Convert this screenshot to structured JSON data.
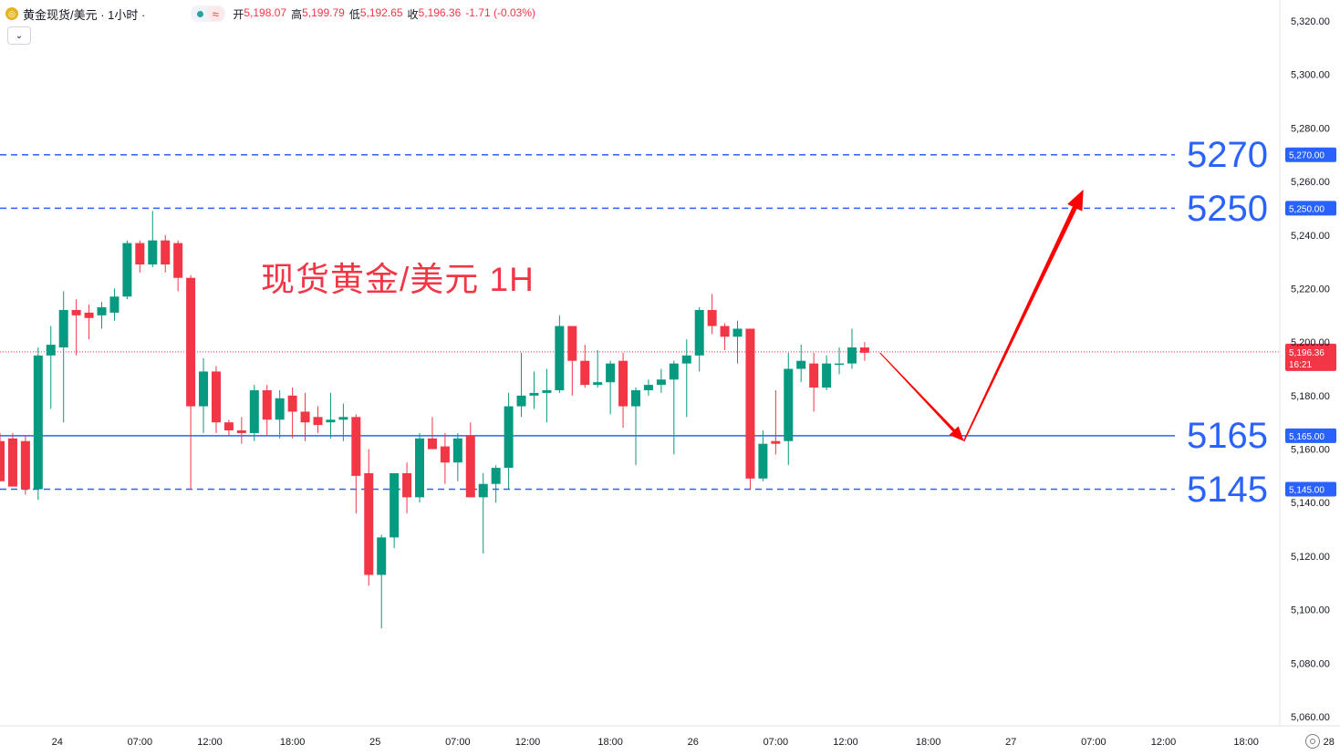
{
  "header": {
    "symbol_title": "黄金现货/美元 · 1小时 ·",
    "ohlc": [
      {
        "label": "开",
        "value": "5,198.07"
      },
      {
        "label": "高",
        "value": "5,199.79"
      },
      {
        "label": "低",
        "value": "5,192.65"
      },
      {
        "label": "收",
        "value": "5,196.36"
      },
      {
        "label": "",
        "value": "-1.71 (-0.03%)"
      }
    ],
    "status_color": "#26a69a",
    "wave_icon": "≈",
    "collapse_icon": "⌄"
  },
  "annotation_title": "现货黄金/美元 1H",
  "levels": [
    {
      "big_label": "5270",
      "axis_label": "5,270.00",
      "value": 5270,
      "style": "dashed"
    },
    {
      "big_label": "5250",
      "axis_label": "5,250.00",
      "value": 5250,
      "style": "dashed"
    },
    {
      "big_label": "5165",
      "axis_label": "5,165.00",
      "value": 5165,
      "style": "solid"
    },
    {
      "big_label": "5145",
      "axis_label": "5,145.00",
      "value": 5145,
      "style": "dashed"
    }
  ],
  "current_price": {
    "label": "5,196.36",
    "countdown": "16:21",
    "value": 5196.36
  },
  "colors": {
    "up": "#089981",
    "down": "#f23645",
    "level": "#2962ff",
    "arrow": "#ff0000",
    "axis_text": "#131722"
  },
  "chart_data": {
    "type": "candlestick",
    "title": "现货黄金/美元 1H",
    "ylim": [
      5052,
      5325
    ],
    "y_ticks": [
      {
        "value": 5320,
        "label": "5,320.00"
      },
      {
        "value": 5300,
        "label": "5,300.00"
      },
      {
        "value": 5280,
        "label": "5,280.00"
      },
      {
        "value": 5260,
        "label": "5,260.00"
      },
      {
        "value": 5240,
        "label": "5,240.00"
      },
      {
        "value": 5220,
        "label": "5,220.00"
      },
      {
        "value": 5200,
        "label": "5,200.00"
      },
      {
        "value": 5180,
        "label": "5,180.00"
      },
      {
        "value": 5160,
        "label": "5,160.00"
      },
      {
        "value": 5140,
        "label": "5,140.00"
      },
      {
        "value": 5120,
        "label": "5,120.00"
      },
      {
        "value": 5100,
        "label": "5,100.00"
      },
      {
        "value": 5080,
        "label": "5,080.00"
      },
      {
        "value": 5060,
        "label": "5,060.00"
      }
    ],
    "x_ticks": [
      {
        "index": 4.5,
        "label": "24"
      },
      {
        "index": 11,
        "label": "07:00"
      },
      {
        "index": 16.5,
        "label": "12:00"
      },
      {
        "index": 23,
        "label": "18:00"
      },
      {
        "index": 29.5,
        "label": "25"
      },
      {
        "index": 36,
        "label": "07:00"
      },
      {
        "index": 41.5,
        "label": "12:00"
      },
      {
        "index": 48,
        "label": "18:00"
      },
      {
        "index": 54.5,
        "label": "26"
      },
      {
        "index": 61,
        "label": "07:00"
      },
      {
        "index": 66.5,
        "label": "12:00"
      },
      {
        "index": 73,
        "label": "18:00"
      },
      {
        "index": 79.5,
        "label": "27"
      },
      {
        "index": 86,
        "label": "07:00"
      },
      {
        "index": 91.5,
        "label": "12:00"
      },
      {
        "index": 98,
        "label": "18:00"
      },
      {
        "index": 104.5,
        "label": "28"
      }
    ],
    "candles": [
      {
        "o": 5163,
        "h": 5166,
        "l": 5148,
        "c": 5148
      },
      {
        "o": 5164,
        "h": 5166,
        "l": 5146,
        "c": 5146
      },
      {
        "o": 5163,
        "h": 5165,
        "l": 5143,
        "c": 5145
      },
      {
        "o": 5145,
        "h": 5198,
        "l": 5141,
        "c": 5195
      },
      {
        "o": 5195,
        "h": 5206,
        "l": 5175,
        "c": 5199
      },
      {
        "o": 5198,
        "h": 5219,
        "l": 5170,
        "c": 5212
      },
      {
        "o": 5212,
        "h": 5216,
        "l": 5195,
        "c": 5210
      },
      {
        "o": 5211,
        "h": 5214,
        "l": 5201,
        "c": 5209
      },
      {
        "o": 5210,
        "h": 5215,
        "l": 5205,
        "c": 5213
      },
      {
        "o": 5211,
        "h": 5220,
        "l": 5208,
        "c": 5217
      },
      {
        "o": 5217,
        "h": 5238,
        "l": 5216,
        "c": 5237
      },
      {
        "o": 5237,
        "h": 5238,
        "l": 5226,
        "c": 5229
      },
      {
        "o": 5229,
        "h": 5249,
        "l": 5228,
        "c": 5238
      },
      {
        "o": 5238,
        "h": 5240,
        "l": 5226,
        "c": 5229
      },
      {
        "o": 5237,
        "h": 5238,
        "l": 5219,
        "c": 5224
      },
      {
        "o": 5224,
        "h": 5225,
        "l": 5145,
        "c": 5176
      },
      {
        "o": 5176,
        "h": 5194,
        "l": 5166,
        "c": 5189
      },
      {
        "o": 5189,
        "h": 5191,
        "l": 5166,
        "c": 5170
      },
      {
        "o": 5170,
        "h": 5171,
        "l": 5165,
        "c": 5167
      },
      {
        "o": 5167,
        "h": 5172,
        "l": 5162,
        "c": 5166
      },
      {
        "o": 5166,
        "h": 5184,
        "l": 5163,
        "c": 5182
      },
      {
        "o": 5182,
        "h": 5184,
        "l": 5165,
        "c": 5171
      },
      {
        "o": 5171,
        "h": 5182,
        "l": 5164,
        "c": 5179
      },
      {
        "o": 5180,
        "h": 5183,
        "l": 5164,
        "c": 5174
      },
      {
        "o": 5174,
        "h": 5181,
        "l": 5163,
        "c": 5170
      },
      {
        "o": 5172,
        "h": 5176,
        "l": 5166,
        "c": 5169
      },
      {
        "o": 5170,
        "h": 5181,
        "l": 5164,
        "c": 5171
      },
      {
        "o": 5171,
        "h": 5177,
        "l": 5163,
        "c": 5172
      },
      {
        "o": 5172,
        "h": 5173,
        "l": 5136,
        "c": 5150
      },
      {
        "o": 5151,
        "h": 5160,
        "l": 5109,
        "c": 5113
      },
      {
        "o": 5113,
        "h": 5128,
        "l": 5093,
        "c": 5127
      },
      {
        "o": 5127,
        "h": 5151,
        "l": 5123,
        "c": 5151
      },
      {
        "o": 5151,
        "h": 5155,
        "l": 5136,
        "c": 5142
      },
      {
        "o": 5142,
        "h": 5166,
        "l": 5140,
        "c": 5164
      },
      {
        "o": 5164,
        "h": 5172,
        "l": 5162,
        "c": 5160
      },
      {
        "o": 5161,
        "h": 5166,
        "l": 5147,
        "c": 5155
      },
      {
        "o": 5155,
        "h": 5166,
        "l": 5148,
        "c": 5164
      },
      {
        "o": 5165,
        "h": 5170,
        "l": 5142,
        "c": 5142
      },
      {
        "o": 5142,
        "h": 5151,
        "l": 5121,
        "c": 5147
      },
      {
        "o": 5147,
        "h": 5154,
        "l": 5140,
        "c": 5153
      },
      {
        "o": 5153,
        "h": 5181,
        "l": 5145,
        "c": 5176
      },
      {
        "o": 5176,
        "h": 5196,
        "l": 5172,
        "c": 5180
      },
      {
        "o": 5180,
        "h": 5189,
        "l": 5175,
        "c": 5181
      },
      {
        "o": 5181,
        "h": 5190,
        "l": 5170,
        "c": 5182
      },
      {
        "o": 5182,
        "h": 5210,
        "l": 5181,
        "c": 5206
      },
      {
        "o": 5206,
        "h": 5206,
        "l": 5180,
        "c": 5193
      },
      {
        "o": 5193,
        "h": 5199,
        "l": 5183,
        "c": 5184
      },
      {
        "o": 5184,
        "h": 5197,
        "l": 5183,
        "c": 5185
      },
      {
        "o": 5185,
        "h": 5193,
        "l": 5173,
        "c": 5192
      },
      {
        "o": 5193,
        "h": 5196,
        "l": 5168,
        "c": 5176
      },
      {
        "o": 5176,
        "h": 5183,
        "l": 5154,
        "c": 5182
      },
      {
        "o": 5182,
        "h": 5186,
        "l": 5180,
        "c": 5184
      },
      {
        "o": 5184,
        "h": 5190,
        "l": 5181,
        "c": 5186
      },
      {
        "o": 5186,
        "h": 5193,
        "l": 5158,
        "c": 5192
      },
      {
        "o": 5192,
        "h": 5201,
        "l": 5172,
        "c": 5195
      },
      {
        "o": 5195,
        "h": 5213,
        "l": 5189,
        "c": 5212
      },
      {
        "o": 5212,
        "h": 5218,
        "l": 5203,
        "c": 5206
      },
      {
        "o": 5206,
        "h": 5207,
        "l": 5197,
        "c": 5202
      },
      {
        "o": 5202,
        "h": 5208,
        "l": 5192,
        "c": 5205
      },
      {
        "o": 5205,
        "h": 5205,
        "l": 5145,
        "c": 5149
      },
      {
        "o": 5149,
        "h": 5167,
        "l": 5148,
        "c": 5162
      },
      {
        "o": 5163,
        "h": 5182,
        "l": 5158,
        "c": 5162
      },
      {
        "o": 5163,
        "h": 5196,
        "l": 5154,
        "c": 5190
      },
      {
        "o": 5190,
        "h": 5199,
        "l": 5185,
        "c": 5193
      },
      {
        "o": 5192,
        "h": 5196,
        "l": 5174,
        "c": 5183
      },
      {
        "o": 5183,
        "h": 5195,
        "l": 5182,
        "c": 5192
      },
      {
        "o": 5192,
        "h": 5198,
        "l": 5188,
        "c": 5192
      },
      {
        "o": 5192,
        "h": 5205,
        "l": 5190,
        "c": 5198
      },
      {
        "o": 5198,
        "h": 5200,
        "l": 5193,
        "c": 5196
      }
    ],
    "projection_arrows": [
      {
        "from": {
          "index": 69.2,
          "price": 5196
        },
        "to": {
          "index": 75.8,
          "price": 5163
        }
      },
      {
        "from": {
          "index": 75.8,
          "price": 5163
        },
        "to": {
          "index": 85.2,
          "price": 5257
        }
      }
    ]
  }
}
